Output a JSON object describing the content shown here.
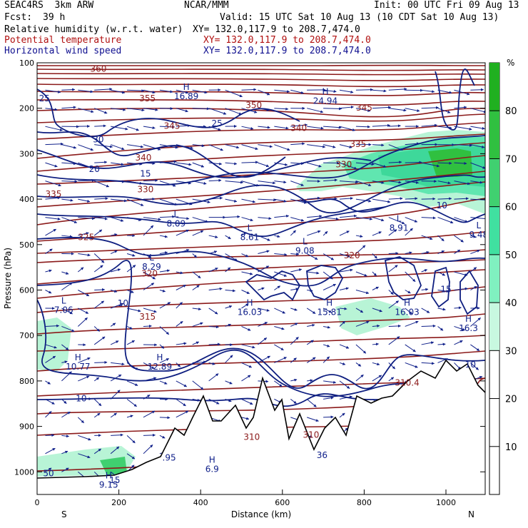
{
  "header": {
    "model": "SEAC4RS  3km ARW",
    "center": "NCAR/MMM",
    "init": "Init: 00 UTC Fri 09 Aug 13",
    "fcst_label": "Fcst:",
    "fcst_value": "39 h",
    "valid": "Valid: 15 UTC Sat 10 Aug 13 (10 CDT Sat 10 Aug 13)",
    "field1": "Relative humidity (w.r.t. water)",
    "field1_xy": "XY= 132.0,117.9 to 208.7,474.0",
    "field2": "Potential temperature",
    "field2_xy": "XY= 132.0,117.9 to 208.7,474.0",
    "field3": "Horizontal wind speed",
    "field3_xy": "XY= 132.0,117.9 to 208.7,474.0"
  },
  "colors": {
    "theta": "#8b1a1a",
    "wind": "#10208a",
    "rh_light": "#a6f0c8",
    "rh_mid": "#40e0a0",
    "rh_dark": "#20b020",
    "field2_text": "#b01010",
    "field3_text": "#101090"
  },
  "chart_data": {
    "type": "cross-section",
    "xlabel": "Distance (km)",
    "ylabel": "Pressure (hPa)",
    "xlim": [
      0,
      1100
    ],
    "ylim": [
      1050,
      100
    ],
    "x_ticks": [
      0,
      200,
      400,
      600,
      800,
      1000
    ],
    "y_ticks": [
      100,
      200,
      300,
      400,
      500,
      600,
      700,
      800,
      900,
      1000
    ],
    "x_end_labels": {
      "left": "S",
      "right": "N"
    },
    "colorbar": {
      "unit": "%",
      "ticks": [
        10,
        20,
        30,
        40,
        50,
        60,
        70,
        80
      ],
      "bands": [
        {
          "from": 30,
          "to": 40,
          "color": "#c8f8e0"
        },
        {
          "from": 40,
          "to": 50,
          "color": "#80f0c0"
        },
        {
          "from": 50,
          "to": 60,
          "color": "#40e0a0"
        },
        {
          "from": 60,
          "to": 70,
          "color": "#40d070"
        },
        {
          "from": 70,
          "to": 80,
          "color": "#30c040"
        },
        {
          "from": 80,
          "to": 90,
          "color": "#20b020"
        }
      ]
    },
    "theta_labels": [
      {
        "text": "360",
        "x": 150,
        "p": 120
      },
      {
        "text": "355",
        "x": 270,
        "p": 185
      },
      {
        "text": "350",
        "x": 530,
        "p": 200
      },
      {
        "text": "345",
        "x": 330,
        "p": 245
      },
      {
        "text": "345",
        "x": 800,
        "p": 205
      },
      {
        "text": "340",
        "x": 260,
        "p": 315
      },
      {
        "text": "340",
        "x": 640,
        "p": 250
      },
      {
        "text": "335",
        "x": 40,
        "p": 395
      },
      {
        "text": "335",
        "x": 785,
        "p": 285
      },
      {
        "text": "330",
        "x": 265,
        "p": 385
      },
      {
        "text": "330",
        "x": 750,
        "p": 330
      },
      {
        "text": "325",
        "x": 120,
        "p": 490
      },
      {
        "text": "320",
        "x": 275,
        "p": 570
      },
      {
        "text": "320",
        "x": 770,
        "p": 530
      },
      {
        "text": "315",
        "x": 270,
        "p": 665
      },
      {
        "text": "310.4",
        "x": 905,
        "p": 810
      },
      {
        "text": "310",
        "x": 525,
        "p": 930
      },
      {
        "text": "310",
        "x": 670,
        "p": 925
      }
    ],
    "wind_labels": [
      {
        "text": "25",
        "x": 18,
        "p": 185
      },
      {
        "text": "30",
        "x": 150,
        "p": 275
      },
      {
        "text": "25",
        "x": 440,
        "p": 240
      },
      {
        "text": "20",
        "x": 140,
        "p": 340
      },
      {
        "text": "15",
        "x": 265,
        "p": 350
      },
      {
        "text": "10",
        "x": 210,
        "p": 635
      },
      {
        "text": "10",
        "x": 108,
        "p": 845
      },
      {
        "text": "10",
        "x": 1060,
        "p": 770
      },
      {
        "text": "15",
        "x": 1000,
        "p": 605
      },
      {
        "text": "10",
        "x": 990,
        "p": 420
      },
      {
        "text": "36",
        "x": 697,
        "p": 970
      },
      {
        "text": ".95",
        "x": 323,
        "p": 975
      },
      {
        "text": "50",
        "x": 28,
        "p": 1010
      },
      {
        "text": "15",
        "x": 190,
        "p": 1025
      }
    ],
    "extrema": [
      {
        "kind": "H",
        "value": "16.89",
        "x": 365,
        "p": 180
      },
      {
        "kind": "H",
        "value": "24.94",
        "x": 705,
        "p": 190
      },
      {
        "kind": "L",
        "value": "8.09",
        "x": 340,
        "p": 460
      },
      {
        "kind": "L",
        "value": "8.61",
        "x": 520,
        "p": 490
      },
      {
        "kind": "L",
        "value": "9.08",
        "x": 655,
        "p": 520
      },
      {
        "kind": "L",
        "value": "8.91",
        "x": 885,
        "p": 470
      },
      {
        "kind": "L",
        "value": "9.48",
        "x": 1080,
        "p": 485
      },
      {
        "kind": "L",
        "value": "8.29",
        "x": 280,
        "p": 555
      },
      {
        "kind": "L",
        "value": "7.06",
        "x": 65,
        "p": 650
      },
      {
        "kind": "H",
        "value": "16.03",
        "x": 520,
        "p": 655
      },
      {
        "kind": "H",
        "value": "15.81",
        "x": 715,
        "p": 655
      },
      {
        "kind": "H",
        "value": "16.03",
        "x": 905,
        "p": 655
      },
      {
        "kind": "H",
        "value": "16.3",
        "x": 1055,
        "p": 690
      },
      {
        "kind": "H",
        "value": "10.77",
        "x": 100,
        "p": 775
      },
      {
        "kind": "H",
        "value": "12.89",
        "x": 300,
        "p": 775
      },
      {
        "kind": "H",
        "value": "6.9",
        "x": 428,
        "p": 1000
      },
      {
        "kind": "H",
        "value": "9.15",
        "x": 175,
        "p": 1035
      }
    ]
  }
}
